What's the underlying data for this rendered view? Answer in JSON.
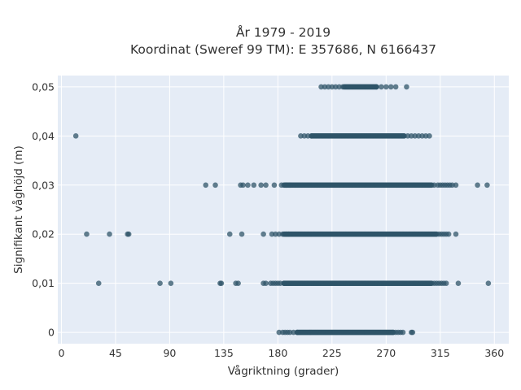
{
  "chart_data": {
    "type": "scatter",
    "title": "År 1979 - 2019",
    "subtitle": "Koordinat (Sweref 99 TM): E 357686, N 6166437",
    "xlabel": "Vågriktning (grader)",
    "ylabel": "Signifikant våghöjd (m)",
    "xlim": [
      -3,
      372
    ],
    "ylim": [
      -0.0023,
      0.0523
    ],
    "x_ticks": [
      0,
      45,
      90,
      135,
      180,
      225,
      270,
      315,
      360
    ],
    "x_tick_labels": [
      "0",
      "45",
      "90",
      "135",
      "180",
      "225",
      "270",
      "315",
      "360"
    ],
    "y_ticks": [
      0,
      0.01,
      0.02,
      0.03,
      0.04,
      0.05
    ],
    "y_tick_labels": [
      "0",
      "0,01",
      "0,02",
      "0,03",
      "0,04",
      "0,05"
    ],
    "grid": true,
    "marker_color": "#2f5468",
    "plot_bg": "#e5ecf6",
    "dense_bands": [
      {
        "y": 0,
        "x_range": [
          196,
          276
        ]
      },
      {
        "y": 0.01,
        "x_range": [
          185,
          308
        ]
      },
      {
        "y": 0.02,
        "x_range": [
          185,
          312
        ]
      },
      {
        "y": 0.03,
        "x_range": [
          185,
          308
        ]
      },
      {
        "y": 0.04,
        "x_range": [
          208,
          285
        ]
      },
      {
        "y": 0.05,
        "x_range": [
          235,
          262
        ]
      }
    ],
    "points": [
      {
        "y": 0,
        "x": [
          181,
          184,
          186,
          188,
          190,
          193,
          196,
          276,
          278,
          280,
          282,
          284,
          291,
          292
        ]
      },
      {
        "y": 0.01,
        "x": [
          31,
          82,
          91,
          132,
          133,
          145,
          147,
          168,
          170,
          174,
          176,
          178,
          180,
          182,
          185,
          308,
          310,
          312,
          314,
          316,
          318,
          320,
          330,
          355
        ]
      },
      {
        "y": 0.02,
        "x": [
          21,
          40,
          55,
          56,
          140,
          150,
          168,
          175,
          178,
          181,
          184,
          187,
          189,
          312,
          314,
          316,
          318,
          320,
          322,
          328
        ]
      },
      {
        "y": 0.03,
        "x": [
          120,
          128,
          149,
          151,
          155,
          160,
          166,
          170,
          177,
          183,
          187,
          190,
          308,
          310,
          313,
          315,
          317,
          319,
          321,
          323,
          325,
          328,
          346,
          354
        ]
      },
      {
        "y": 0.04,
        "x": [
          12,
          199,
          202,
          205,
          208,
          285,
          288,
          291,
          294,
          297,
          300,
          303,
          306
        ]
      },
      {
        "y": 0.05,
        "x": [
          216,
          219,
          222,
          225,
          228,
          231,
          234,
          262,
          266,
          270,
          274,
          278,
          287
        ]
      }
    ]
  }
}
